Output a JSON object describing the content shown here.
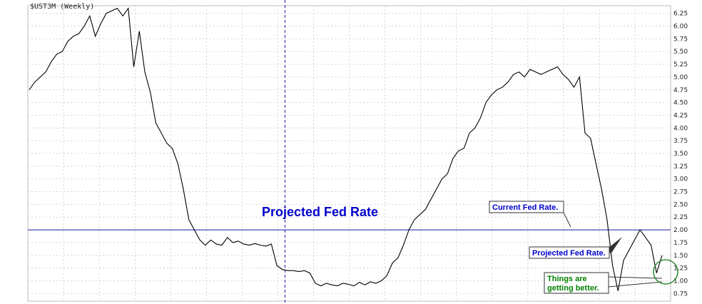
{
  "colors": {
    "line": "#000000",
    "grid": "#d3d3d3",
    "reference_line": "#1a1aa6",
    "vline": "#1a1aa6",
    "annotation_blue": "#0000cc",
    "annotation_green": "#008000",
    "circle": "#2e8b2e",
    "callout_border": "#333333"
  },
  "chart_data": {
    "type": "line",
    "title": "$UST3M (Weekly)",
    "xlabel": "",
    "ylabel": "",
    "ylim": [
      0.6,
      6.4
    ],
    "yticks": [
      "6.25",
      "6.00",
      "5.75",
      "5.50",
      "5.25",
      "5.00",
      "4.75",
      "4.50",
      "4.25",
      "4.00",
      "3.75",
      "3.50",
      "3.25",
      "3.00",
      "2.75",
      "2.50",
      "2.25",
      "2.00",
      "1.75",
      "1.50",
      "1.25",
      "1.00",
      "0.75"
    ],
    "grid": true,
    "y_axis_side": "right",
    "reference_line": {
      "y": 2.0,
      "label": "Projected Fed Rate"
    },
    "series": [
      {
        "values": [
          4.75,
          4.9,
          5.0,
          5.1,
          5.3,
          5.45,
          5.5,
          5.7,
          5.8,
          5.85,
          6.0,
          6.2,
          5.8,
          6.05,
          6.25,
          6.3,
          6.35,
          6.2,
          6.35,
          5.2,
          5.9,
          5.1,
          4.7,
          4.1,
          3.9,
          3.7,
          3.6,
          3.3,
          2.8,
          2.2,
          2.0,
          1.8,
          1.7,
          1.8,
          1.72,
          1.7,
          1.85,
          1.75,
          1.78,
          1.72,
          1.7,
          1.73,
          1.7,
          1.68,
          1.72,
          1.3,
          1.22,
          1.2,
          1.2,
          1.18,
          1.2,
          1.15,
          0.95,
          0.9,
          0.95,
          0.92,
          0.9,
          0.95,
          0.93,
          0.9,
          0.97,
          0.92,
          0.98,
          0.95,
          1.0,
          1.1,
          1.35,
          1.45,
          1.7,
          2.0,
          2.2,
          2.3,
          2.4,
          2.6,
          2.8,
          3.0,
          3.1,
          3.4,
          3.55,
          3.6,
          3.9,
          4.0,
          4.2,
          4.5,
          4.65,
          4.75,
          4.8,
          4.9,
          5.05,
          5.1,
          5.0,
          5.15,
          5.1,
          5.05,
          5.1,
          5.15,
          5.2,
          5.05,
          4.95,
          4.8,
          5.0,
          3.9,
          3.8,
          3.3,
          2.8,
          2.2,
          1.3,
          0.8,
          1.4,
          1.6,
          1.8,
          2.0,
          1.85,
          1.7,
          1.15,
          1.5
        ],
        "color": "#000000"
      }
    ],
    "vertical_marker": {
      "x_fraction": 0.4
    },
    "annotations": [
      {
        "text": "Projected Fed Rate",
        "color": "#0000cc",
        "style": "large"
      },
      {
        "text": "Current Fed Rate.",
        "color": "#0000cc",
        "style": "callout"
      },
      {
        "text": "Projected Fed Rate.",
        "color": "#0000cc",
        "style": "callout"
      },
      {
        "text": "Things are",
        "color": "#008000",
        "style": "callout"
      },
      {
        "text": "getting better.",
        "color": "#008000",
        "style": "callout"
      }
    ]
  }
}
